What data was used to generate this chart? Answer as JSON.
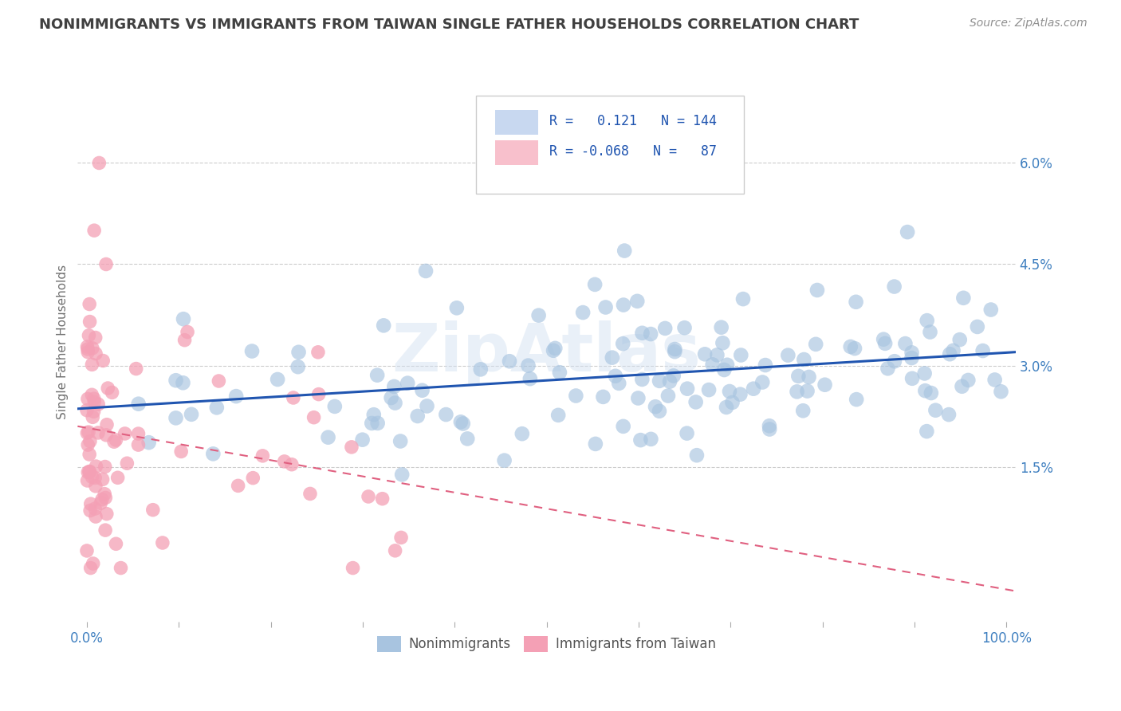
{
  "title": "NONIMMIGRANTS VS IMMIGRANTS FROM TAIWAN SINGLE FATHER HOUSEHOLDS CORRELATION CHART",
  "source": "Source: ZipAtlas.com",
  "ylabel": "Single Father Households",
  "right_yticks": [
    0.0,
    0.015,
    0.03,
    0.045,
    0.06
  ],
  "right_yticklabels": [
    "",
    "1.5%",
    "3.0%",
    "4.5%",
    "6.0%"
  ],
  "xlim": [
    -0.01,
    1.01
  ],
  "ylim": [
    -0.008,
    0.075
  ],
  "nonimm_R": 0.121,
  "nonimm_N": 144,
  "imm_R": -0.068,
  "imm_N": 87,
  "scatter_blue": "#a8c4e0",
  "scatter_pink": "#f4a0b5",
  "line_blue": "#2055b0",
  "line_pink": "#e06080",
  "legend_box_blue": "#c8d8f0",
  "legend_box_pink": "#f8c0cc",
  "background": "#ffffff",
  "grid_color": "#cccccc",
  "title_color": "#404040",
  "label_color": "#4080c0",
  "watermark": "ZipAtlas",
  "nonimm_seed": 42,
  "imm_seed": 99
}
